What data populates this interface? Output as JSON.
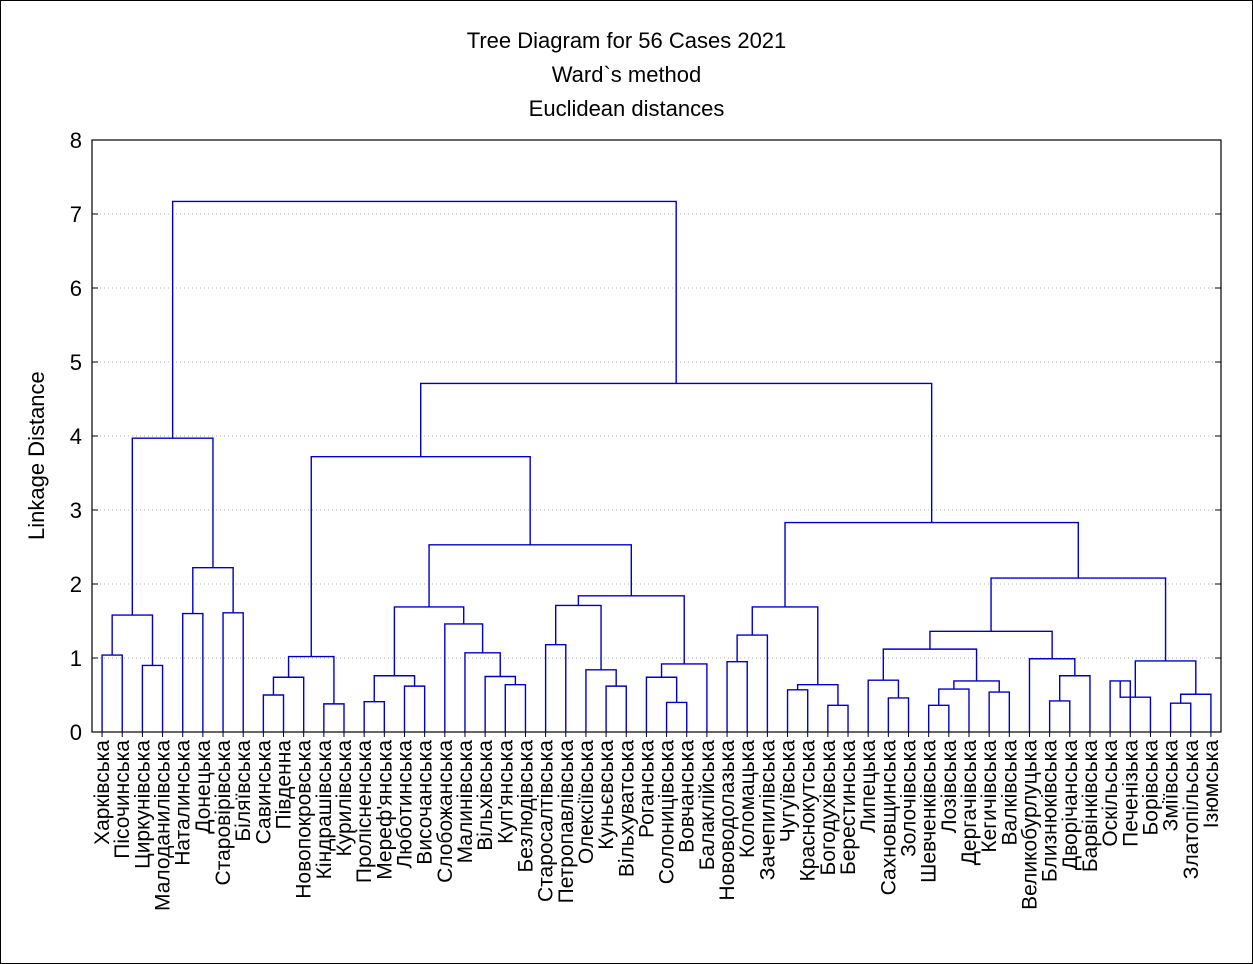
{
  "chart_data": {
    "type": "dendrogram",
    "title": [
      "Tree Diagram for 56 Cases 2021",
      "Ward`s method",
      "Euclidean distances"
    ],
    "ylabel": "Linkage Distance",
    "ylim": [
      0,
      8
    ],
    "yticks": [
      0,
      1,
      2,
      3,
      4,
      5,
      6,
      7,
      8
    ],
    "grid": true,
    "colors": {
      "tree": "#0000cc",
      "axis": "#000000",
      "grid": "#b0b0b0"
    },
    "leaves": [
      "Харківська",
      "Пісочинська",
      "Циркунівська",
      "Малоданилівська",
      "Наталинська",
      "Донецька",
      "Старовірівська",
      "Біляївська",
      "Савинська",
      "Південна",
      "Новопокровська",
      "Кіндрашівська",
      "Курилівська",
      "Пролісненська",
      "Мереф'янська",
      "Люботинська",
      "Височанська",
      "Слобожанська",
      "Малинівська",
      "Вільхівська",
      "Куп'янська",
      "Безлюдівська",
      "Старосалтівська",
      "Петропавлівська",
      "Олексіївська",
      "Куньєвська",
      "Вільхуватська",
      "Роганська",
      "Солоницівська",
      "Вовчанська",
      "Балаклійська",
      "Нововодолазька",
      "Коломацька",
      "Зачепилівська",
      "Чугуївська",
      "Краснокутська",
      "Богодухівська",
      "Берестинська",
      "Липецька",
      "Сахновщинська",
      "Золочівська",
      "Шевченківська",
      "Лозівська",
      "Дергачівська",
      "Кегичівська",
      "Валківська",
      "Великобурлуцька",
      "Близнюківська",
      "Дворічанська",
      "Барвінківська",
      "Оскільська",
      "Печенізька",
      "Борівська",
      "Зміївська",
      "Златопільська",
      "Ізюмська"
    ],
    "merges": [
      {
        "left": "L0",
        "right": "L1",
        "height": 1.04
      },
      {
        "left": "L2",
        "right": "L3",
        "height": 0.9
      },
      {
        "left": "C0",
        "right": "C1",
        "height": 1.58
      },
      {
        "left": "L4",
        "right": "L5",
        "height": 1.6
      },
      {
        "left": "L6",
        "right": "L7",
        "height": 1.61
      },
      {
        "left": "C3",
        "right": "C4",
        "height": 2.22
      },
      {
        "left": "C2",
        "right": "C5",
        "height": 3.97
      },
      {
        "left": "L8",
        "right": "L9",
        "height": 0.5
      },
      {
        "left": "C7",
        "right": "L10",
        "height": 0.74
      },
      {
        "left": "L11",
        "right": "L12",
        "height": 0.38
      },
      {
        "left": "C8",
        "right": "C9",
        "height": 1.02
      },
      {
        "left": "L13",
        "right": "L14",
        "height": 0.41
      },
      {
        "left": "L15",
        "right": "L16",
        "height": 0.62
      },
      {
        "left": "C11",
        "right": "C12",
        "height": 0.76
      },
      {
        "left": "L20",
        "right": "L21",
        "height": 0.64
      },
      {
        "left": "L19",
        "right": "C14",
        "height": 0.75
      },
      {
        "left": "L18",
        "right": "C15",
        "height": 1.07
      },
      {
        "left": "L17",
        "right": "C16",
        "height": 1.46
      },
      {
        "left": "C13",
        "right": "C17",
        "height": 1.69
      },
      {
        "left": "L22",
        "right": "L23",
        "height": 1.18
      },
      {
        "left": "L25",
        "right": "L26",
        "height": 0.62
      },
      {
        "left": "L24",
        "right": "C20",
        "height": 0.84
      },
      {
        "left": "C19",
        "right": "C21",
        "height": 1.71
      },
      {
        "left": "L28",
        "right": "L29",
        "height": 0.4
      },
      {
        "left": "L27",
        "right": "C23",
        "height": 0.74
      },
      {
        "left": "C24",
        "right": "L30",
        "height": 0.92
      },
      {
        "left": "C22",
        "right": "C25",
        "height": 1.84
      },
      {
        "left": "C18",
        "right": "C26",
        "height": 2.53
      },
      {
        "left": "C10",
        "right": "C27",
        "height": 3.72
      },
      {
        "left": "L31",
        "right": "L32",
        "height": 0.95
      },
      {
        "left": "C29",
        "right": "L33",
        "height": 1.31
      },
      {
        "left": "L34",
        "right": "L35",
        "height": 0.57
      },
      {
        "left": "L36",
        "right": "L37",
        "height": 0.36
      },
      {
        "left": "C31",
        "right": "C32",
        "height": 0.64
      },
      {
        "left": "C30",
        "right": "C33",
        "height": 1.69
      },
      {
        "left": "L39",
        "right": "L40",
        "height": 0.46
      },
      {
        "left": "L38",
        "right": "C35",
        "height": 0.7
      },
      {
        "left": "L41",
        "right": "L42",
        "height": 0.36
      },
      {
        "left": "C37",
        "right": "L43",
        "height": 0.58
      },
      {
        "left": "L44",
        "right": "L45",
        "height": 0.54
      },
      {
        "left": "C38",
        "right": "C39",
        "height": 0.69
      },
      {
        "left": "C36",
        "right": "C40",
        "height": 1.12
      },
      {
        "left": "L47",
        "right": "L48",
        "height": 0.42
      },
      {
        "left": "C42",
        "right": "L49",
        "height": 0.76
      },
      {
        "left": "L46",
        "right": "C43",
        "height": 0.99
      },
      {
        "left": "C41",
        "right": "C44",
        "height": 1.36
      },
      {
        "left": "L50",
        "right": "L51",
        "height": 0.69
      },
      {
        "left": "C46",
        "right": "L52",
        "height": 0.47
      },
      {
        "left": "L53",
        "right": "L54",
        "height": 0.39
      },
      {
        "left": "C48",
        "right": "L55",
        "height": 0.51
      },
      {
        "left": "C47",
        "right": "C49",
        "height": 0.96
      },
      {
        "left": "C45",
        "right": "C50",
        "height": 2.08
      },
      {
        "left": "C34",
        "right": "C51",
        "height": 2.83
      },
      {
        "left": "C28",
        "right": "C52",
        "height": 4.71
      },
      {
        "left": "C6",
        "right": "C53",
        "height": 7.17
      }
    ]
  }
}
